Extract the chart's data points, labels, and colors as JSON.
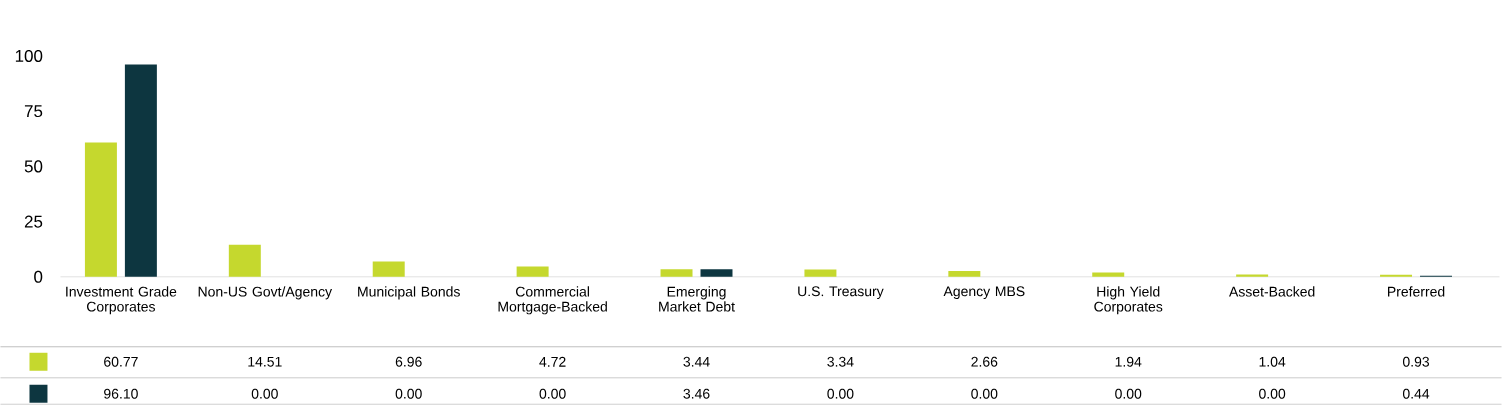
{
  "chart_data": {
    "type": "bar",
    "categories": [
      "Investment Grade Corporates",
      "Non-US Govt/Agency",
      "Municipal Bonds",
      "Commercial Mortgage-Backed",
      "Emerging Market Debt",
      "U.S. Treasury",
      "Agency MBS",
      "High Yield Corporates",
      "Asset-Backed",
      "Preferred"
    ],
    "series": [
      {
        "color": "#c5d82e",
        "values": [
          60.77,
          14.51,
          6.96,
          4.72,
          3.44,
          3.34,
          2.66,
          1.94,
          1.04,
          0.93
        ],
        "value_labels": [
          "60.77",
          "14.51",
          "6.96",
          "4.72",
          "3.44",
          "3.34",
          "2.66",
          "1.94",
          "1.04",
          "0.93"
        ]
      },
      {
        "color": "#0d3640",
        "values": [
          96.1,
          0,
          0,
          0,
          3.46,
          0,
          0,
          0,
          0,
          0.44
        ],
        "value_labels": [
          "96.10",
          "0.00",
          "0.00",
          "0.00",
          "3.46",
          "0.00",
          "0.00",
          "0.00",
          "0.00",
          "0.44"
        ]
      }
    ],
    "ylim": [
      0,
      100
    ],
    "yticks": [
      0,
      25,
      50,
      75,
      100
    ],
    "grid": false,
    "legend": false
  }
}
